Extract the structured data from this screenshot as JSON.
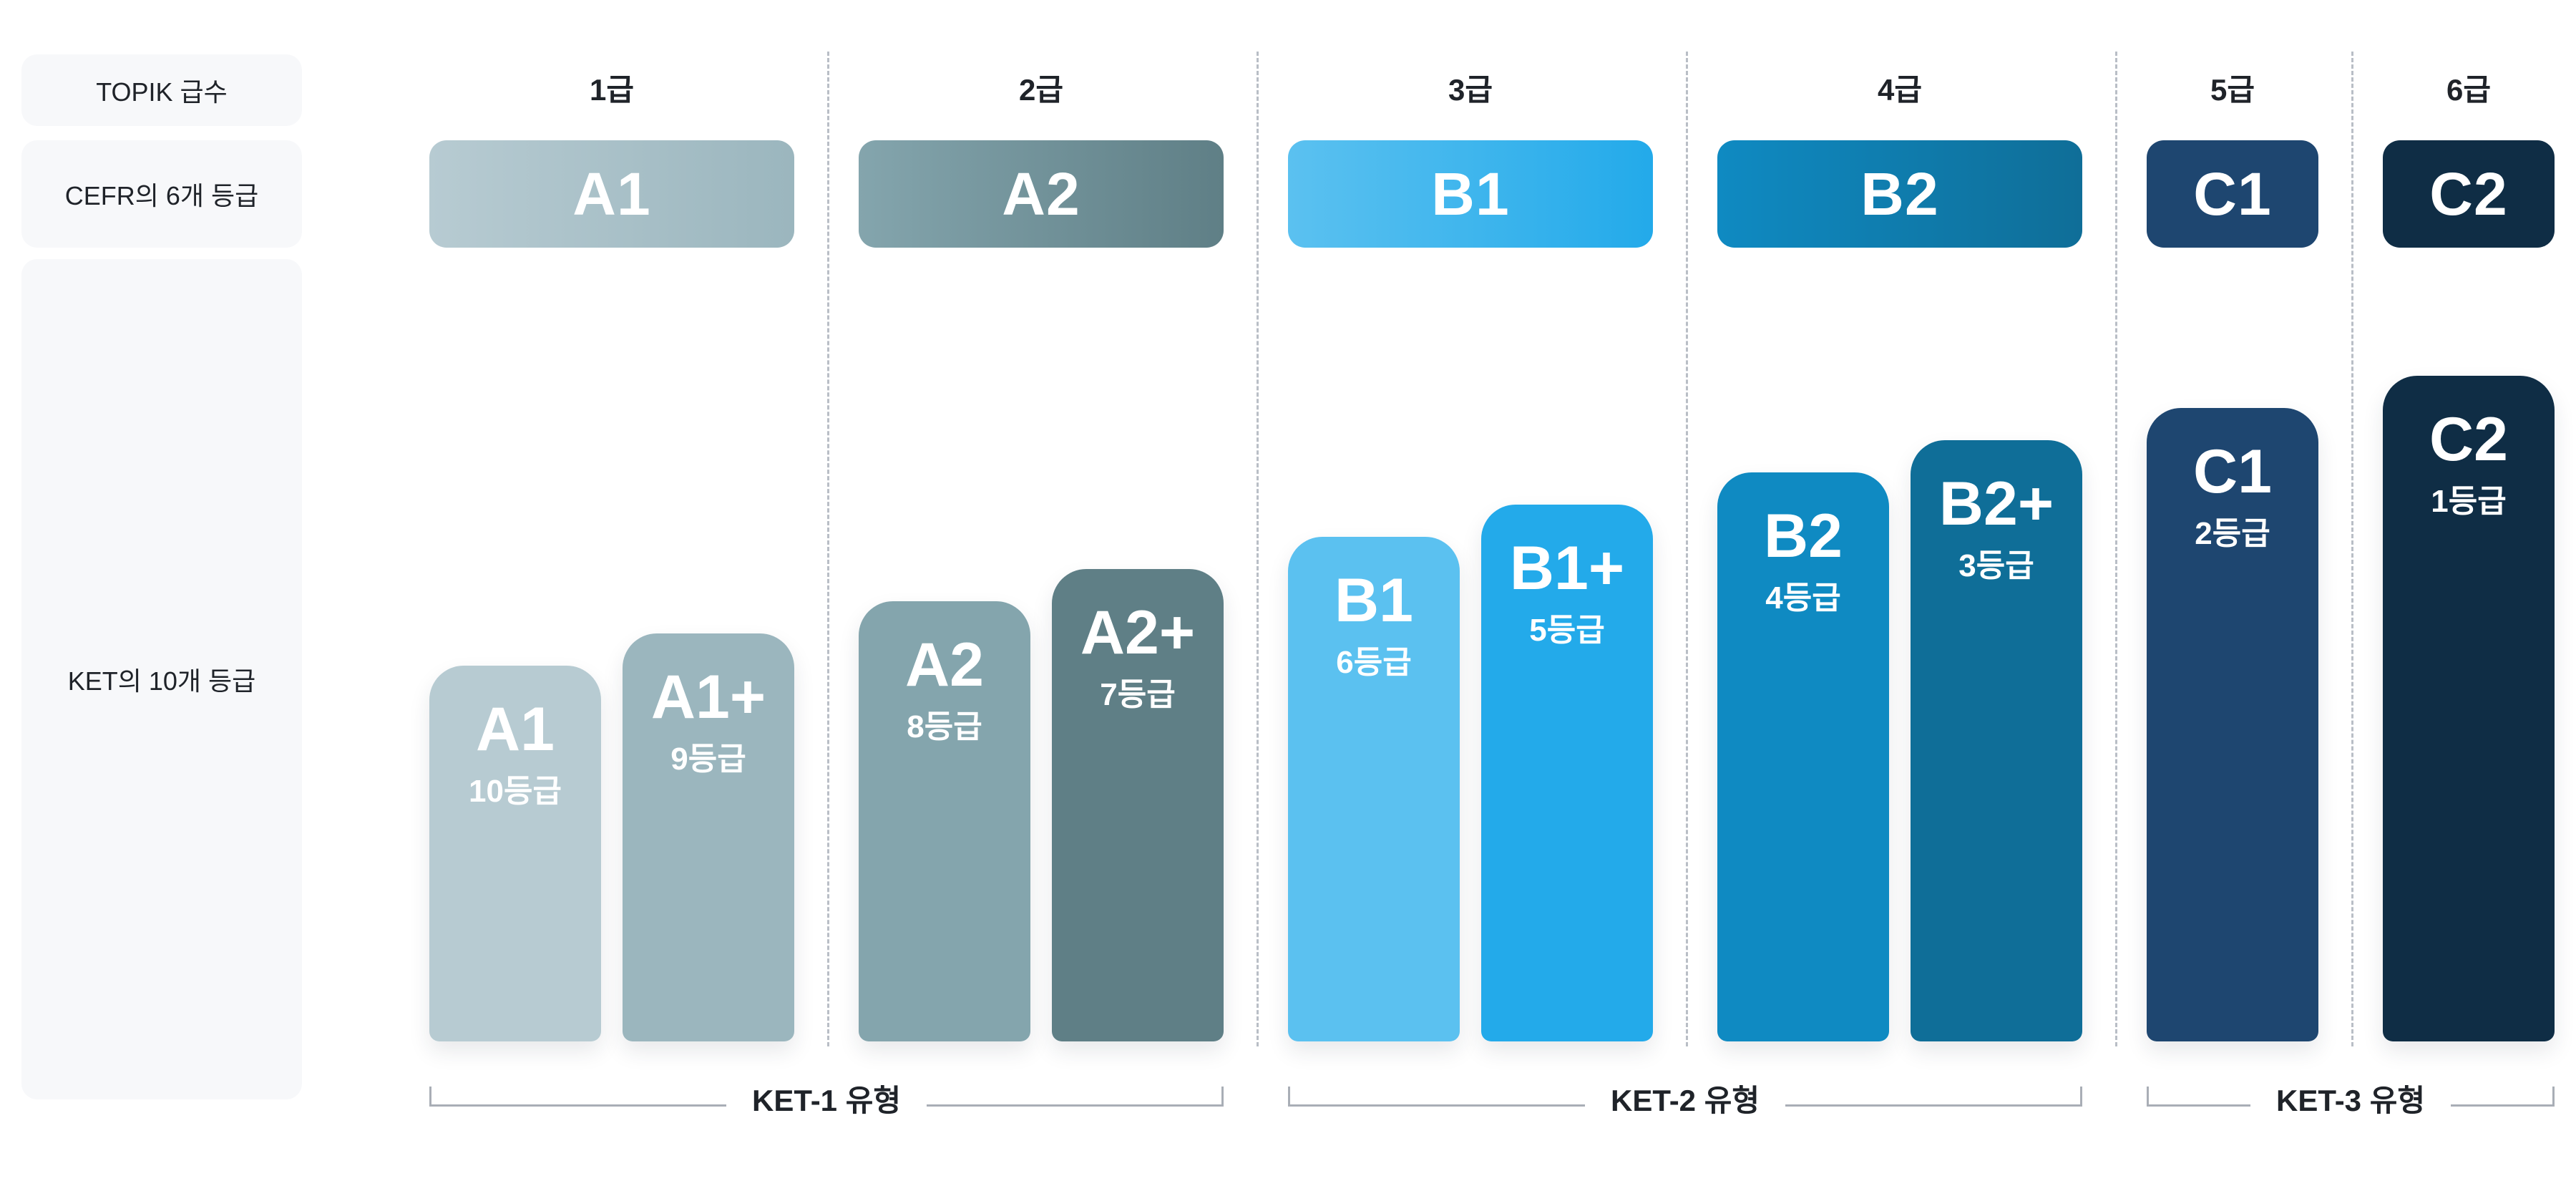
{
  "row_labels": {
    "topik": "TOPIK 급수",
    "cefr": "CEFR의 6개 등급",
    "ket": "KET의 10개 등급"
  },
  "topik_levels": [
    "1급",
    "2급",
    "3급",
    "4급",
    "5급",
    "6급"
  ],
  "cefr_levels": [
    "A1",
    "A2",
    "B1",
    "B2",
    "C1",
    "C2"
  ],
  "ket_bars": [
    {
      "level": "A1",
      "grade": "10등급"
    },
    {
      "level": "A1+",
      "grade": "9등급"
    },
    {
      "level": "A2",
      "grade": "8등급"
    },
    {
      "level": "A2+",
      "grade": "7등급"
    },
    {
      "level": "B1",
      "grade": "6등급"
    },
    {
      "level": "B1+",
      "grade": "5등급"
    },
    {
      "level": "B2",
      "grade": "4등급"
    },
    {
      "level": "B2+",
      "grade": "3등급"
    },
    {
      "level": "C1",
      "grade": "2등급"
    },
    {
      "level": "C2",
      "grade": "1등급"
    }
  ],
  "ket_groups": [
    "KET-1 유형",
    "KET-2 유형",
    "KET-3 유형"
  ],
  "colors": {
    "A1": "#b7cbd2",
    "A1+": "#9bb6be",
    "A2": "#84a5ad",
    "A2+": "#5f7f86",
    "B1": "#5bc1f0",
    "B1+": "#23aaea",
    "B2": "#0f8ac2",
    "B2+": "#0f6e98",
    "C1": "#1e4670",
    "C2": "#0f2d45"
  }
}
